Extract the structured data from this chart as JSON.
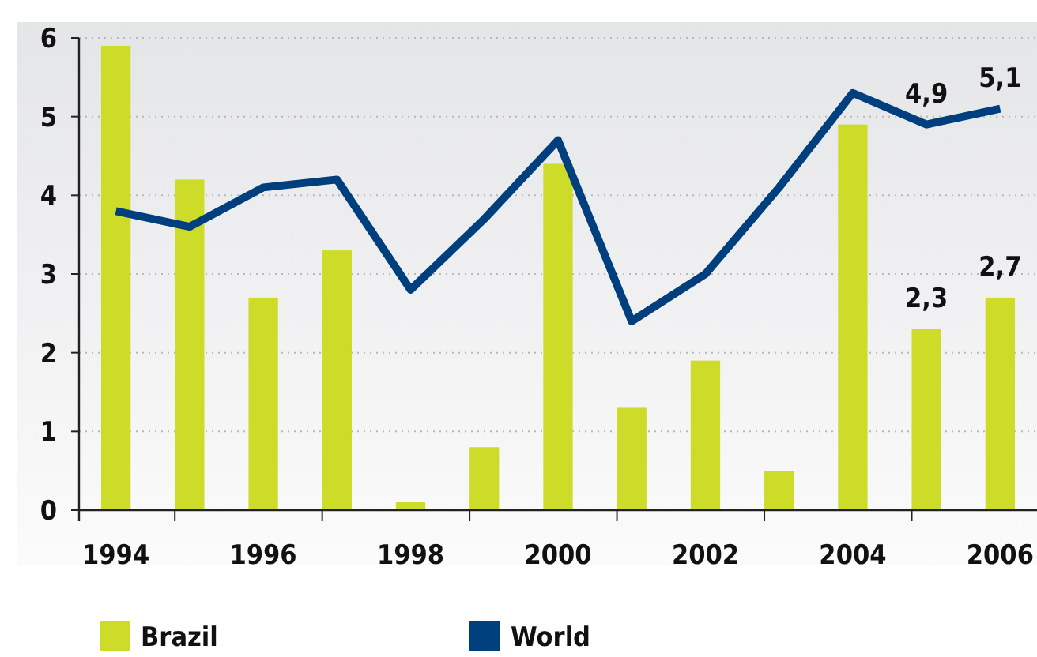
{
  "chart_data": {
    "type": "bar",
    "categories": [
      "1994",
      null,
      "1996",
      null,
      "1998",
      null,
      "2000",
      null,
      "2002",
      null,
      "2004",
      null,
      "2006"
    ],
    "series": [
      {
        "name": "Brazil",
        "color": "#cddc29",
        "values": [
          5.9,
          4.2,
          2.7,
          3.3,
          0.1,
          0.8,
          4.4,
          1.3,
          1.9,
          0.5,
          4.9,
          2.3,
          2.7
        ],
        "value_labels": [
          null,
          null,
          null,
          null,
          null,
          null,
          null,
          null,
          null,
          null,
          null,
          "2,3",
          "2,7"
        ]
      },
      {
        "name": "World",
        "type": "line",
        "color": "#003f7d",
        "values": [
          3.8,
          3.6,
          4.1,
          4.2,
          2.8,
          3.7,
          4.7,
          2.4,
          3.0,
          4.1,
          5.3,
          4.9,
          5.1
        ],
        "value_labels": [
          null,
          null,
          null,
          null,
          null,
          null,
          null,
          null,
          null,
          null,
          null,
          "4,9",
          "5,1"
        ]
      }
    ],
    "ylim": [
      0,
      6
    ],
    "yticks": [
      0,
      1,
      2,
      3,
      4,
      5,
      6
    ],
    "grid": "y",
    "legend": "bottom",
    "marker": "none",
    "line_style": "solid"
  }
}
